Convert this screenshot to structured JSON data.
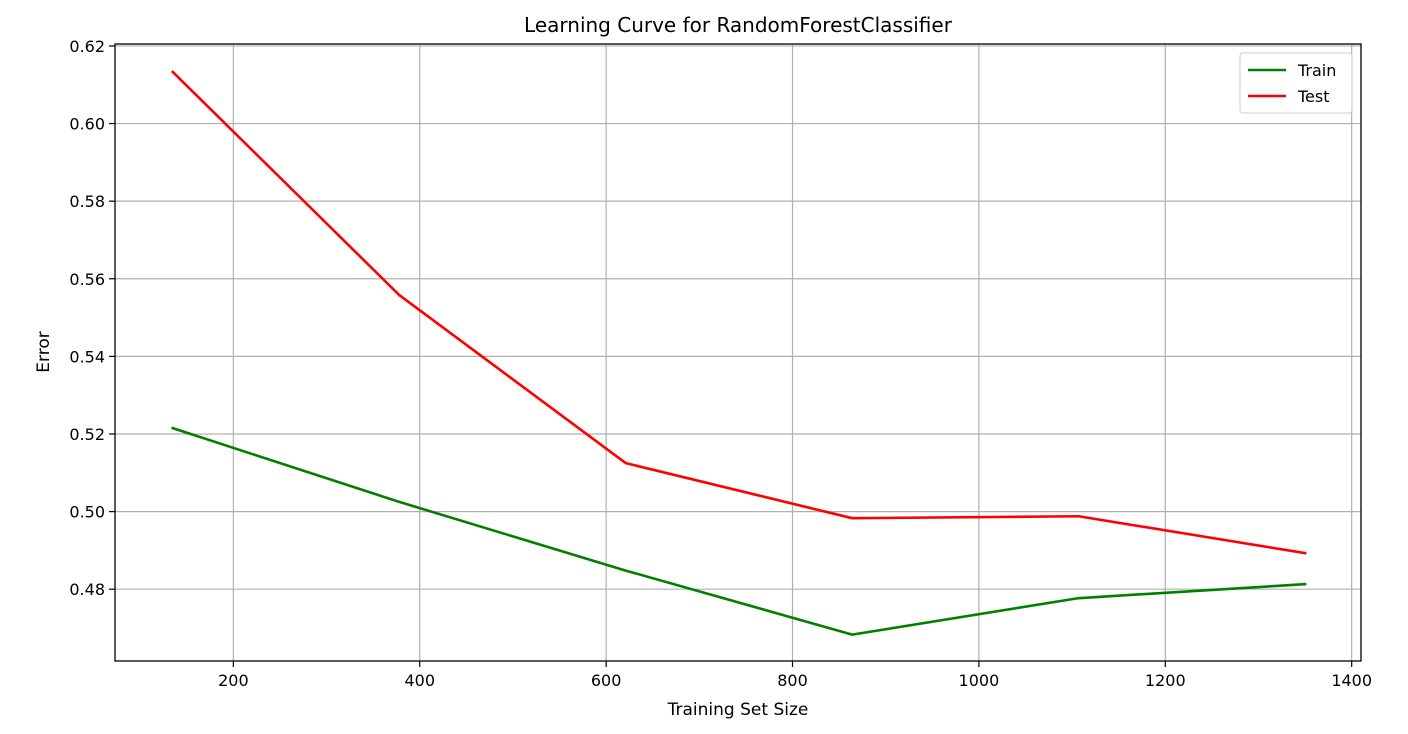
{
  "chart_data": {
    "type": "line",
    "title": "Learning Curve for RandomForestClassifier",
    "xlabel": "Training Set Size",
    "ylabel": "Error",
    "xlim": [
      73,
      1410
    ],
    "ylim": [
      0.4615,
      0.6205
    ],
    "xticks": [
      200,
      400,
      600,
      800,
      1000,
      1200,
      1400
    ],
    "xtick_labels": [
      "200",
      "400",
      "600",
      "800",
      "1000",
      "1200",
      "1400"
    ],
    "yticks": [
      0.48,
      0.5,
      0.52,
      0.54,
      0.56,
      0.58,
      0.6,
      0.62
    ],
    "ytick_labels": [
      "0.48",
      "0.50",
      "0.52",
      "0.54",
      "0.56",
      "0.58",
      "0.60",
      "0.62"
    ],
    "grid": true,
    "legend_position": "top-right",
    "x": [
      135,
      378,
      621,
      864,
      1107,
      1350
    ],
    "series": [
      {
        "name": "Train",
        "color": "#008000",
        "values": [
          0.5215,
          0.5025,
          0.4848,
          0.4683,
          0.4777,
          0.4813
        ]
      },
      {
        "name": "Test",
        "color": "#ff0000",
        "values": [
          0.6133,
          0.5558,
          0.5125,
          0.4983,
          0.4988,
          0.4893
        ]
      }
    ]
  }
}
